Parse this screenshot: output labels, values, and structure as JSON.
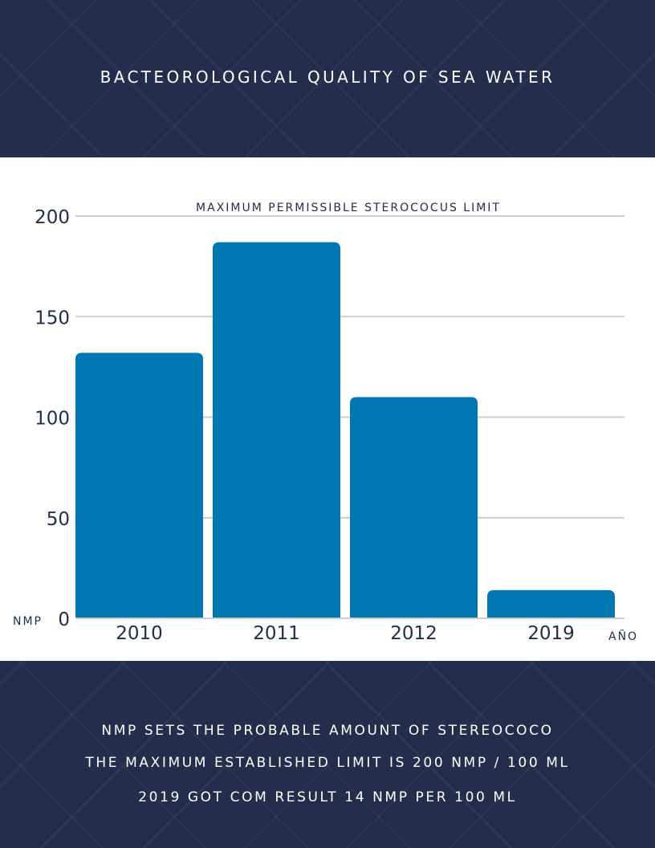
{
  "header": {
    "title": "BACTEOROLOGICAL QUALITY OF SEA WATER"
  },
  "chart_data": {
    "type": "bar",
    "title": "MAXIMUM PERMISSIBLE STEROCOCUS LIMIT",
    "categories": [
      "2010",
      "2011",
      "2012",
      "2019"
    ],
    "values": [
      132,
      187,
      110,
      14
    ],
    "ylabel": "NMP",
    "xlabel": "AÑO",
    "ylim": [
      0,
      200
    ],
    "yticks": [
      0,
      50,
      100,
      150,
      200
    ],
    "grid": true,
    "colors": {
      "bar": "#0077b0",
      "grid": "#cccccc",
      "text": "#242e4c"
    }
  },
  "footer": {
    "notes": [
      "NMP SETS THE PROBABLE AMOUNT OF STEREOCOCO",
      "THE MAXIMUM ESTABLISHED LIMIT IS 200 NMP / 100 ML",
      "2019 GOT COM RESULT 14 NMP PER 100 ML"
    ]
  }
}
